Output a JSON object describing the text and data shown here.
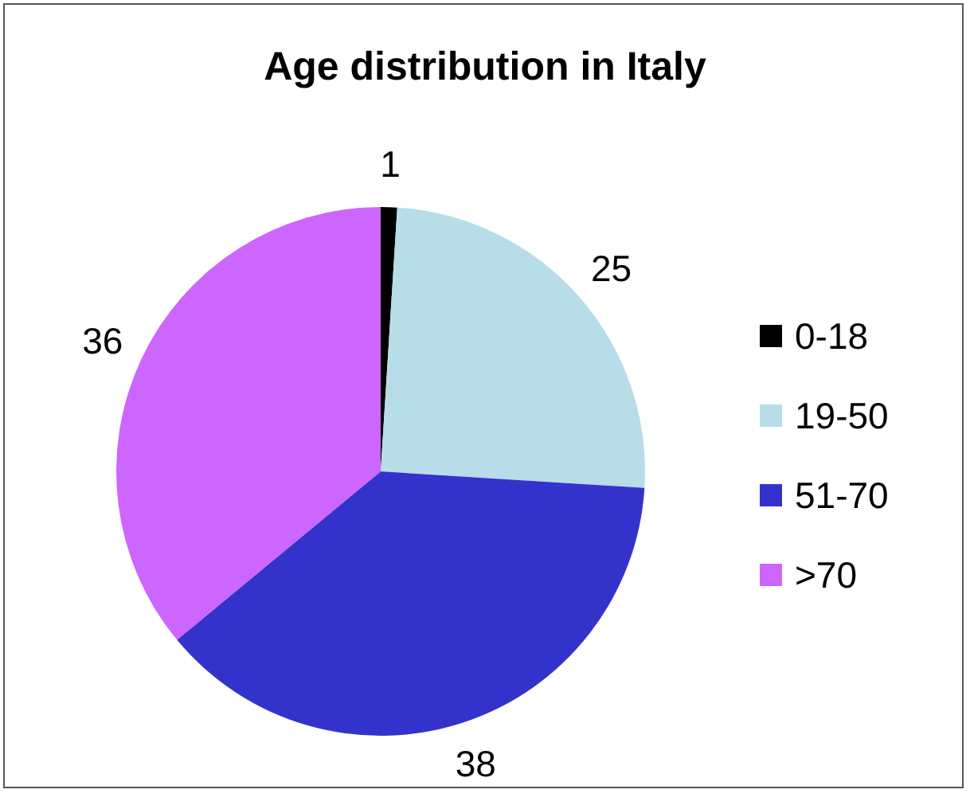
{
  "chart_data": {
    "type": "pie",
    "title": "Age distribution in Italy",
    "categories": [
      "0-18",
      "19-50",
      "51-70",
      ">70"
    ],
    "values": [
      1,
      25,
      38,
      36
    ],
    "colors": [
      "#000000",
      "#b7dde8",
      "#3333cc",
      "#cc66ff"
    ],
    "data_labels": true,
    "legend": "right"
  }
}
